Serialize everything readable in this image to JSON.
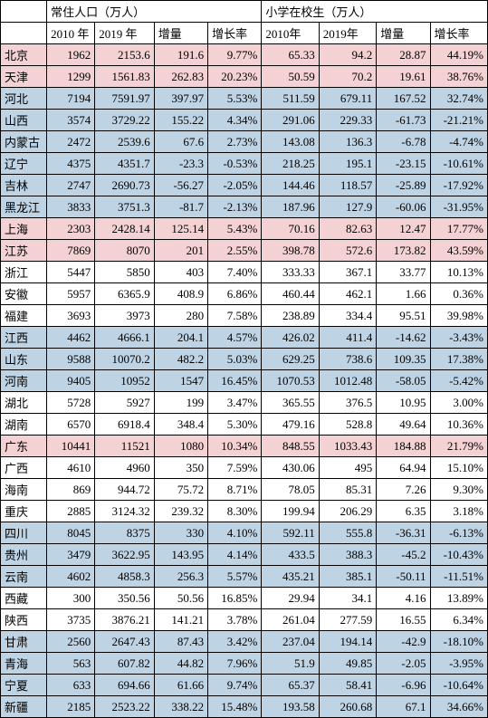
{
  "headers": {
    "group1": "常住人口（万人）",
    "group2": "小学在校生（万人）",
    "sub": [
      "2010 年",
      "2019 年",
      "增量",
      "增长率",
      "2010年",
      "2019年",
      "增量",
      "增长率"
    ]
  },
  "colors": {
    "pink": "#f4d1d3",
    "blue": "#bed3e4",
    "white": "#ffffff",
    "border": "#000000"
  },
  "rows": [
    {
      "c": "pink",
      "p": "北京",
      "v": [
        "1962",
        "2153.6",
        "191.6",
        "9.77%",
        "65.33",
        "94.2",
        "28.87",
        "44.19%"
      ]
    },
    {
      "c": "pink",
      "p": "天津",
      "v": [
        "1299",
        "1561.83",
        "262.83",
        "20.23%",
        "50.59",
        "70.2",
        "19.61",
        "38.76%"
      ]
    },
    {
      "c": "blue",
      "p": "河北",
      "v": [
        "7194",
        "7591.97",
        "397.97",
        "5.53%",
        "511.59",
        "679.11",
        "167.52",
        "32.74%"
      ]
    },
    {
      "c": "blue",
      "p": "山西",
      "v": [
        "3574",
        "3729.22",
        "155.22",
        "4.34%",
        "291.06",
        "229.33",
        "-61.73",
        "-21.21%"
      ]
    },
    {
      "c": "blue",
      "p": "内蒙古",
      "v": [
        "2472",
        "2539.6",
        "67.6",
        "2.73%",
        "143.08",
        "136.3",
        "-6.78",
        "-4.74%"
      ]
    },
    {
      "c": "blue",
      "p": "辽宁",
      "v": [
        "4375",
        "4351.7",
        "-23.3",
        "-0.53%",
        "218.25",
        "195.1",
        "-23.15",
        "-10.61%"
      ]
    },
    {
      "c": "blue",
      "p": "吉林",
      "v": [
        "2747",
        "2690.73",
        "-56.27",
        "-2.05%",
        "144.46",
        "118.57",
        "-25.89",
        "-17.92%"
      ]
    },
    {
      "c": "blue",
      "p": "黑龙江",
      "v": [
        "3833",
        "3751.3",
        "-81.7",
        "-2.13%",
        "187.96",
        "127.9",
        "-60.06",
        "-31.95%"
      ]
    },
    {
      "c": "pink",
      "p": "上海",
      "v": [
        "2303",
        "2428.14",
        "125.14",
        "5.43%",
        "70.16",
        "82.63",
        "12.47",
        "17.77%"
      ]
    },
    {
      "c": "pink",
      "p": "江苏",
      "v": [
        "7869",
        "8070",
        "201",
        "2.55%",
        "398.78",
        "572.6",
        "173.82",
        "43.59%"
      ]
    },
    {
      "c": "white",
      "p": "浙江",
      "v": [
        "5447",
        "5850",
        "403",
        "7.40%",
        "333.33",
        "367.1",
        "33.77",
        "10.13%"
      ]
    },
    {
      "c": "white",
      "p": "安徽",
      "v": [
        "5957",
        "6365.9",
        "408.9",
        "6.86%",
        "460.44",
        "462.1",
        "1.66",
        "0.36%"
      ]
    },
    {
      "c": "white",
      "p": "福建",
      "v": [
        "3693",
        "3973",
        "280",
        "7.58%",
        "238.89",
        "334.4",
        "95.51",
        "39.98%"
      ]
    },
    {
      "c": "blue",
      "p": "江西",
      "v": [
        "4462",
        "4666.1",
        "204.1",
        "4.57%",
        "426.02",
        "411.4",
        "-14.62",
        "-3.43%"
      ]
    },
    {
      "c": "blue",
      "p": "山东",
      "v": [
        "9588",
        "10070.2",
        "482.2",
        "5.03%",
        "629.25",
        "738.6",
        "109.35",
        "17.38%"
      ]
    },
    {
      "c": "blue",
      "p": "河南",
      "v": [
        "9405",
        "10952",
        "1547",
        "16.45%",
        "1070.53",
        "1012.48",
        "-58.05",
        "-5.42%"
      ]
    },
    {
      "c": "white",
      "p": "湖北",
      "v": [
        "5728",
        "5927",
        "199",
        "3.47%",
        "365.55",
        "376.5",
        "10.95",
        "3.00%"
      ]
    },
    {
      "c": "white",
      "p": "湖南",
      "v": [
        "6570",
        "6918.4",
        "348.4",
        "5.30%",
        "479.16",
        "528.8",
        "49.64",
        "10.36%"
      ]
    },
    {
      "c": "pink",
      "p": "广东",
      "v": [
        "10441",
        "11521",
        "1080",
        "10.34%",
        "848.55",
        "1033.43",
        "184.88",
        "21.79%"
      ]
    },
    {
      "c": "white",
      "p": "广西",
      "v": [
        "4610",
        "4960",
        "350",
        "7.59%",
        "430.06",
        "495",
        "64.94",
        "15.10%"
      ]
    },
    {
      "c": "white",
      "p": "海南",
      "v": [
        "869",
        "944.72",
        "75.72",
        "8.71%",
        "78.05",
        "85.31",
        "7.26",
        "9.30%"
      ]
    },
    {
      "c": "white",
      "p": "重庆",
      "v": [
        "2885",
        "3124.32",
        "239.32",
        "8.30%",
        "199.94",
        "206.29",
        "6.35",
        "3.18%"
      ]
    },
    {
      "c": "blue",
      "p": "四川",
      "v": [
        "8045",
        "8375",
        "330",
        "4.10%",
        "592.11",
        "555.8",
        "-36.31",
        "-6.13%"
      ]
    },
    {
      "c": "blue",
      "p": "贵州",
      "v": [
        "3479",
        "3622.95",
        "143.95",
        "4.14%",
        "433.5",
        "388.3",
        "-45.2",
        "-10.43%"
      ]
    },
    {
      "c": "blue",
      "p": "云南",
      "v": [
        "4602",
        "4858.3",
        "256.3",
        "5.57%",
        "435.21",
        "385.1",
        "-50.11",
        "-11.51%"
      ]
    },
    {
      "c": "white",
      "p": "西藏",
      "v": [
        "300",
        "350.56",
        "50.56",
        "16.85%",
        "29.94",
        "34.1",
        "4.16",
        "13.89%"
      ]
    },
    {
      "c": "white",
      "p": "陕西",
      "v": [
        "3735",
        "3876.21",
        "141.21",
        "3.78%",
        "261.04",
        "277.59",
        "16.55",
        "6.34%"
      ]
    },
    {
      "c": "blue",
      "p": "甘肃",
      "v": [
        "2560",
        "2647.43",
        "87.43",
        "3.42%",
        "237.04",
        "194.14",
        "-42.9",
        "-18.10%"
      ]
    },
    {
      "c": "blue",
      "p": "青海",
      "v": [
        "563",
        "607.82",
        "44.82",
        "7.96%",
        "51.9",
        "49.85",
        "-2.05",
        "-3.95%"
      ]
    },
    {
      "c": "blue",
      "p": "宁夏",
      "v": [
        "633",
        "694.66",
        "61.66",
        "9.74%",
        "65.37",
        "58.41",
        "-6.96",
        "-10.64%"
      ]
    },
    {
      "c": "blue",
      "p": "新疆",
      "v": [
        "2185",
        "2523.22",
        "338.22",
        "15.48%",
        "193.58",
        "260.68",
        "67.1",
        "34.66%"
      ]
    }
  ]
}
